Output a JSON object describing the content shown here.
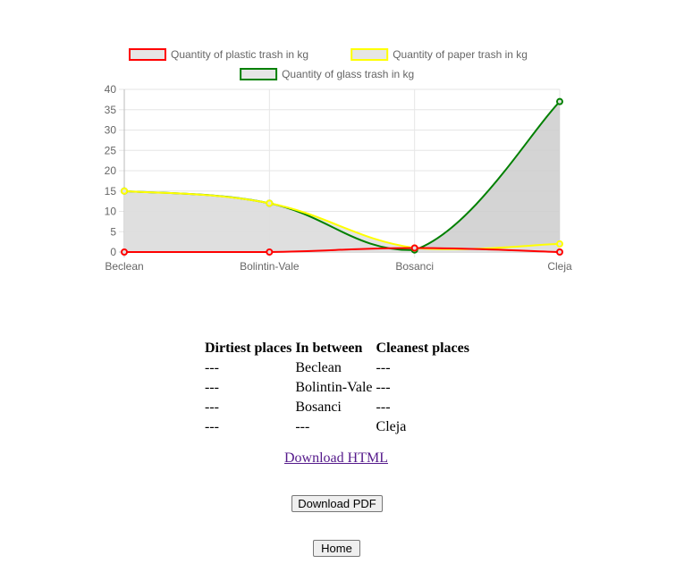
{
  "chart_data": {
    "type": "line",
    "categories": [
      "Beclean",
      "Bolintin-Vale",
      "Bosanci",
      "Cleja"
    ],
    "series": [
      {
        "name": "Quantity of plastic trash in kg",
        "values": [
          0,
          0,
          1,
          0
        ],
        "border_color": "#ff0000",
        "fill_color": "#cccccc",
        "filled": false
      },
      {
        "name": "Quantity of paper trash in kg",
        "values": [
          15,
          12,
          1,
          2
        ],
        "border_color": "#ffff00",
        "fill_color": "#e0e0e0",
        "filled": true
      },
      {
        "name": "Quantity of glass trash in kg",
        "values": [
          15,
          12,
          0.5,
          37
        ],
        "border_color": "#008000",
        "fill_color": "#cccccc",
        "filled": true
      }
    ],
    "ylim": [
      0,
      40
    ],
    "yticks": [
      0,
      5,
      10,
      15,
      20,
      25,
      30,
      35,
      40
    ],
    "grid": true,
    "legend": "top"
  },
  "table": {
    "headers": [
      "Dirtiest places",
      "In between",
      "Cleanest places"
    ],
    "rows": [
      [
        "---",
        "Beclean",
        "---"
      ],
      [
        "---",
        "Bolintin-Vale",
        "---"
      ],
      [
        "---",
        "Bosanci",
        "---"
      ],
      [
        "---",
        "---",
        "Cleja"
      ]
    ]
  },
  "links": {
    "download_html": "Download HTML"
  },
  "buttons": {
    "download_pdf": "Download PDF",
    "home": "Home"
  }
}
